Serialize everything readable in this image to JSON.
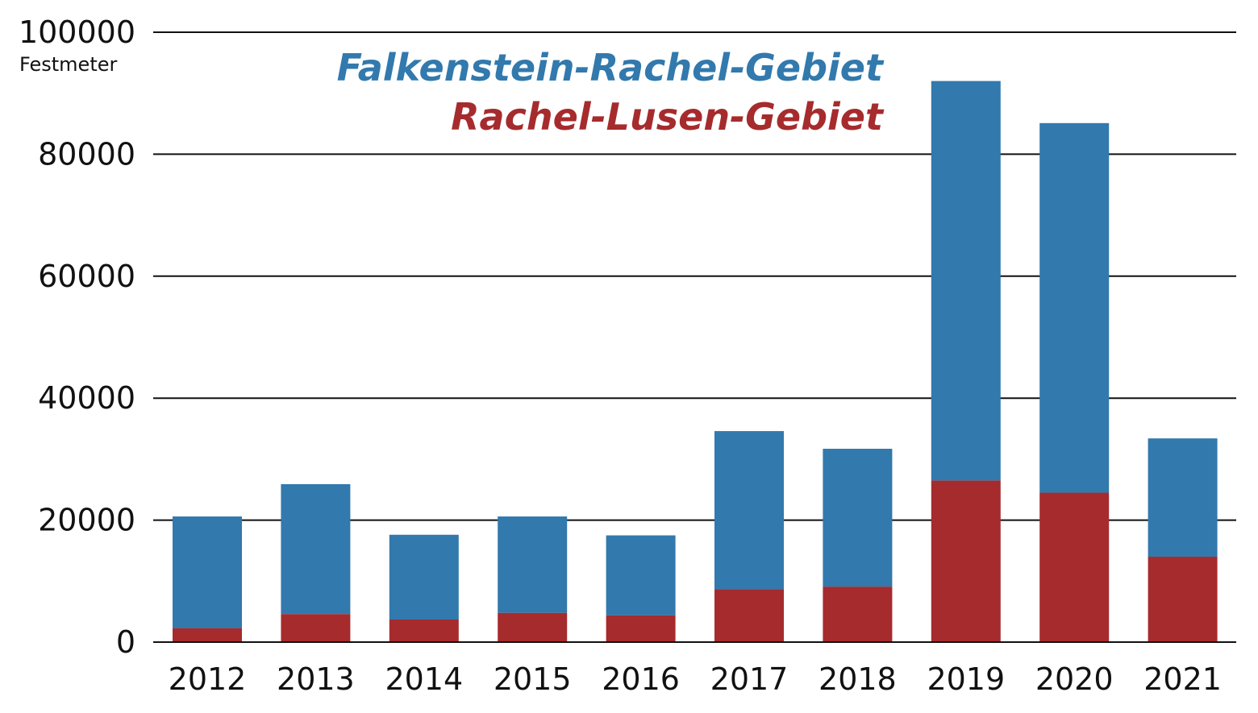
{
  "chart_data": {
    "type": "bar",
    "stacked": true,
    "categories": [
      "2012",
      "2013",
      "2014",
      "2015",
      "2016",
      "2017",
      "2018",
      "2019",
      "2020",
      "2021"
    ],
    "series": [
      {
        "name": "Rachel-Lusen-Gebiet",
        "color": "#a62b2d",
        "values": [
          2300,
          4600,
          3700,
          4800,
          4400,
          8700,
          9100,
          26500,
          24500,
          14000
        ]
      },
      {
        "name": "Falkenstein-Rachel-Gebiet",
        "color": "#3279ad",
        "values": [
          18300,
          21300,
          13900,
          15800,
          13100,
          25900,
          22600,
          65500,
          60600,
          19400
        ]
      }
    ],
    "ylabel": "Festmeter",
    "yticks": [
      "0",
      "20000",
      "40000",
      "60000",
      "80000",
      "100000"
    ],
    "ylim": [
      0,
      100000
    ],
    "grid": true,
    "legend_position": "top-right",
    "legend_order": [
      "Falkenstein-Rachel-Gebiet",
      "Rachel-Lusen-Gebiet"
    ]
  }
}
